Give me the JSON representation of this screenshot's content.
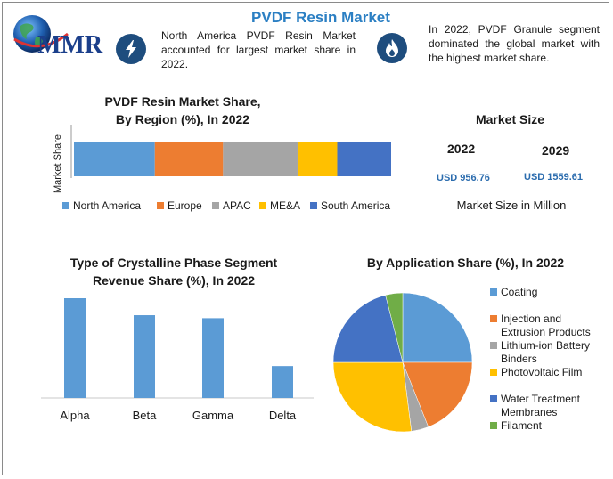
{
  "header": {
    "title": "PVDF Resin Market",
    "logo_text": "MMR",
    "note_left": "North America PVDF Resin Market accounted for largest market share in 2022.",
    "note_right": "In 2022, PVDF Granule segment dominated the global market with the highest market share.",
    "icon_left": "lightning-icon",
    "icon_right": "flame-icon"
  },
  "market_size": {
    "title": "Market Size",
    "year1": "2022",
    "year2": "2029",
    "value1": "USD 956.76",
    "value2": "USD 1559.61",
    "unit_label": "Market Size in Million"
  },
  "colors": {
    "blue": "#5b9bd5",
    "orange": "#ed7d31",
    "gray": "#a5a5a5",
    "yellow": "#ffc000",
    "darkblue": "#4472c4",
    "green": "#70ad47",
    "accent": "#2b7fc3"
  },
  "chart_data": [
    {
      "type": "bar",
      "orientation": "horizontal-stacked",
      "title_line1": "PVDF Resin Market Share,",
      "title_line2": "By Region (%), In 2022",
      "ylabel": "Market Share",
      "xlim": [
        0,
        100
      ],
      "series": [
        {
          "name": "North America",
          "values": [
            25.5
          ],
          "color": "#5b9bd5"
        },
        {
          "name": "Europe",
          "values": [
            21.5
          ],
          "color": "#ed7d31"
        },
        {
          "name": "APAC",
          "values": [
            23.5
          ],
          "color": "#a5a5a5"
        },
        {
          "name": "ME&A",
          "values": [
            12.5
          ],
          "color": "#ffc000"
        },
        {
          "name": "South America",
          "values": [
            17
          ],
          "color": "#4472c4"
        }
      ],
      "legend": "bottom"
    },
    {
      "type": "bar",
      "title_line1": "Type of Crystalline Phase Segment",
      "title_line2": "Revenue Share (%), In 2022",
      "categories": [
        "Alpha",
        "Beta",
        "Gamma",
        "Delta"
      ],
      "values": [
        100,
        83,
        80,
        32
      ],
      "ylim": [
        0,
        100
      ],
      "color": "#5b9bd5"
    },
    {
      "type": "pie",
      "title": "By Application Share (%), In 2022",
      "labels": [
        "Coating",
        "Injection and Extrusion Products",
        "Lithium-ion Battery Binders",
        "Photovoltaic Film",
        "Water Treatment Membranes",
        "Filament"
      ],
      "legend_lines": [
        [
          "Coating"
        ],
        [
          "Injection and",
          "Extrusion Products"
        ],
        [
          "Lithium-ion Battery",
          "Binders"
        ],
        [
          "Photovoltaic Film"
        ],
        [
          "Water Treatment",
          "Membranes"
        ],
        [
          "Filament"
        ]
      ],
      "values": [
        25,
        19,
        4,
        27,
        21,
        4
      ],
      "colors": [
        "#5b9bd5",
        "#ed7d31",
        "#a5a5a5",
        "#ffc000",
        "#4472c4",
        "#70ad47"
      ],
      "legend": "right"
    }
  ]
}
